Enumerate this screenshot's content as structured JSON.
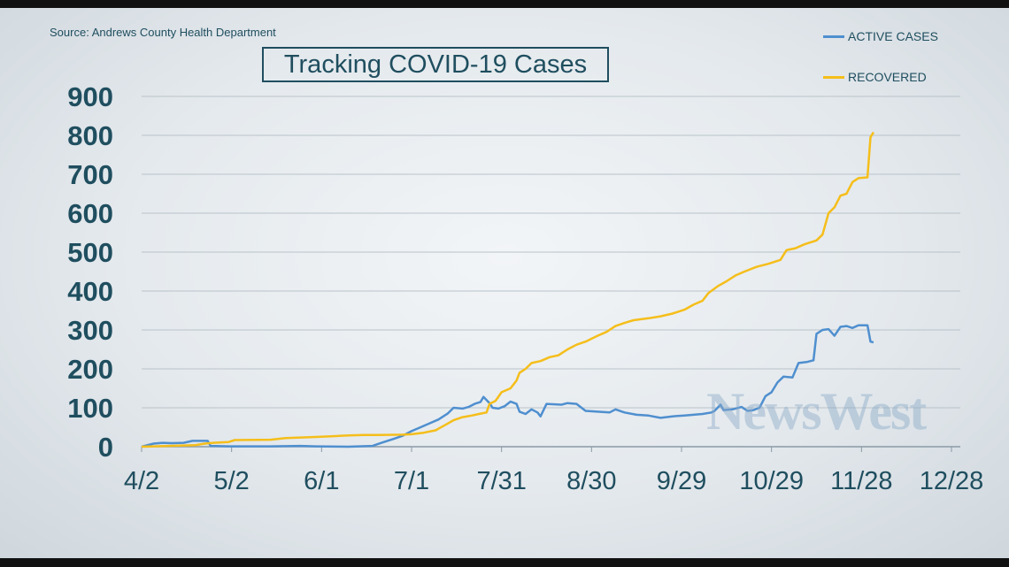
{
  "source": "Source: Andrews County Health Department",
  "title": "Tracking COVID-19 Cases",
  "watermark": "NewsWest",
  "legend": [
    {
      "label": "ACTIVE CASES",
      "color": "#4f8fcf"
    },
    {
      "label": "RECOVERED",
      "color": "#f5be1a"
    }
  ],
  "chart_data": {
    "type": "line",
    "title": "Tracking COVID-19 Cases",
    "xlabel": "",
    "ylabel": "",
    "ylim": [
      0,
      900
    ],
    "xlim": [
      "4/2",
      "12/28"
    ],
    "x_ticks": [
      "4/2",
      "5/2",
      "6/1",
      "7/1",
      "7/31",
      "8/30",
      "9/29",
      "10/29",
      "11/28",
      "12/28"
    ],
    "y_ticks": [
      0,
      100,
      200,
      300,
      400,
      500,
      600,
      700,
      800,
      900
    ],
    "grid": true,
    "legend_position": "top-right",
    "series": [
      {
        "name": "ACTIVE CASES",
        "color": "#4f8fcf",
        "points": [
          [
            "4/2",
            0
          ],
          [
            "4/6",
            8
          ],
          [
            "4/9",
            10
          ],
          [
            "4/12",
            9
          ],
          [
            "4/16",
            10
          ],
          [
            "4/19",
            15
          ],
          [
            "4/24",
            15
          ],
          [
            "4/25",
            2
          ],
          [
            "5/2",
            1
          ],
          [
            "5/15",
            1
          ],
          [
            "5/25",
            2
          ],
          [
            "5/30",
            1
          ],
          [
            "6/10",
            0
          ],
          [
            "6/18",
            2
          ],
          [
            "6/21",
            10
          ],
          [
            "6/25",
            20
          ],
          [
            "6/28",
            28
          ],
          [
            "7/1",
            40
          ],
          [
            "7/4",
            50
          ],
          [
            "7/7",
            60
          ],
          [
            "7/10",
            70
          ],
          [
            "7/13",
            85
          ],
          [
            "7/15",
            100
          ],
          [
            "7/18",
            98
          ],
          [
            "7/20",
            102
          ],
          [
            "7/22",
            110
          ],
          [
            "7/24",
            115
          ],
          [
            "7/25",
            128
          ],
          [
            "7/27",
            112
          ],
          [
            "7/28",
            100
          ],
          [
            "7/30",
            98
          ],
          [
            "8/1",
            104
          ],
          [
            "8/3",
            116
          ],
          [
            "8/5",
            110
          ],
          [
            "8/6",
            90
          ],
          [
            "8/8",
            84
          ],
          [
            "8/10",
            96
          ],
          [
            "8/12",
            88
          ],
          [
            "8/13",
            78
          ],
          [
            "8/15",
            110
          ],
          [
            "8/20",
            108
          ],
          [
            "8/22",
            112
          ],
          [
            "8/25",
            110
          ],
          [
            "8/28",
            92
          ],
          [
            "9/1",
            90
          ],
          [
            "9/5",
            88
          ],
          [
            "9/7",
            96
          ],
          [
            "9/10",
            88
          ],
          [
            "9/14",
            82
          ],
          [
            "9/18",
            80
          ],
          [
            "9/22",
            74
          ],
          [
            "9/26",
            78
          ],
          [
            "9/30",
            80
          ],
          [
            "10/3",
            82
          ],
          [
            "10/6",
            84
          ],
          [
            "10/9",
            88
          ],
          [
            "10/10",
            92
          ],
          [
            "10/12",
            108
          ],
          [
            "10/13",
            94
          ],
          [
            "10/16",
            96
          ],
          [
            "10/19",
            102
          ],
          [
            "10/21",
            92
          ],
          [
            "10/23",
            94
          ],
          [
            "10/25",
            100
          ],
          [
            "10/27",
            130
          ],
          [
            "10/29",
            140
          ],
          [
            "10/31",
            165
          ],
          [
            "11/2",
            180
          ],
          [
            "11/5",
            178
          ],
          [
            "11/7",
            215
          ],
          [
            "11/10",
            218
          ],
          [
            "11/12",
            222
          ],
          [
            "11/13",
            290
          ],
          [
            "11/15",
            300
          ],
          [
            "11/17",
            302
          ],
          [
            "11/19",
            285
          ],
          [
            "11/21",
            308
          ],
          [
            "11/23",
            310
          ],
          [
            "11/25",
            305
          ],
          [
            "11/27",
            312
          ],
          [
            "11/30",
            312
          ],
          [
            "12/1",
            270
          ],
          [
            "12/2",
            268
          ]
        ]
      },
      {
        "name": "RECOVERED",
        "color": "#f5be1a",
        "points": [
          [
            "4/2",
            0
          ],
          [
            "4/20",
            4
          ],
          [
            "4/23",
            8
          ],
          [
            "4/26",
            10
          ],
          [
            "5/1",
            12
          ],
          [
            "5/3",
            17
          ],
          [
            "5/15",
            18
          ],
          [
            "5/20",
            22
          ],
          [
            "5/30",
            25
          ],
          [
            "6/5",
            27
          ],
          [
            "6/10",
            29
          ],
          [
            "6/15",
            30
          ],
          [
            "6/20",
            30
          ],
          [
            "6/28",
            31
          ],
          [
            "7/1",
            32
          ],
          [
            "7/5",
            36
          ],
          [
            "7/9",
            42
          ],
          [
            "7/12",
            55
          ],
          [
            "7/15",
            68
          ],
          [
            "7/18",
            76
          ],
          [
            "7/21",
            80
          ],
          [
            "7/24",
            85
          ],
          [
            "7/26",
            88
          ],
          [
            "7/27",
            110
          ],
          [
            "7/29",
            118
          ],
          [
            "7/31",
            140
          ],
          [
            "8/3",
            150
          ],
          [
            "8/5",
            170
          ],
          [
            "8/6",
            190
          ],
          [
            "8/8",
            200
          ],
          [
            "8/10",
            215
          ],
          [
            "8/13",
            220
          ],
          [
            "8/16",
            230
          ],
          [
            "8/19",
            235
          ],
          [
            "8/22",
            250
          ],
          [
            "8/25",
            262
          ],
          [
            "8/28",
            270
          ],
          [
            "9/1",
            285
          ],
          [
            "9/4",
            295
          ],
          [
            "9/7",
            310
          ],
          [
            "9/10",
            318
          ],
          [
            "9/13",
            325
          ],
          [
            "9/18",
            330
          ],
          [
            "9/22",
            335
          ],
          [
            "9/26",
            342
          ],
          [
            "9/30",
            352
          ],
          [
            "10/3",
            365
          ],
          [
            "10/6",
            375
          ],
          [
            "10/8",
            395
          ],
          [
            "10/11",
            412
          ],
          [
            "10/14",
            425
          ],
          [
            "10/17",
            440
          ],
          [
            "10/20",
            450
          ],
          [
            "10/24",
            462
          ],
          [
            "10/28",
            470
          ],
          [
            "11/1",
            480
          ],
          [
            "11/3",
            505
          ],
          [
            "11/6",
            510
          ],
          [
            "11/9",
            520
          ],
          [
            "11/13",
            530
          ],
          [
            "11/15",
            545
          ],
          [
            "11/17",
            600
          ],
          [
            "11/19",
            615
          ],
          [
            "11/21",
            645
          ],
          [
            "11/23",
            650
          ],
          [
            "11/25",
            680
          ],
          [
            "11/27",
            690
          ],
          [
            "11/30",
            692
          ],
          [
            "12/1",
            795
          ],
          [
            "12/2",
            808
          ]
        ]
      }
    ]
  }
}
